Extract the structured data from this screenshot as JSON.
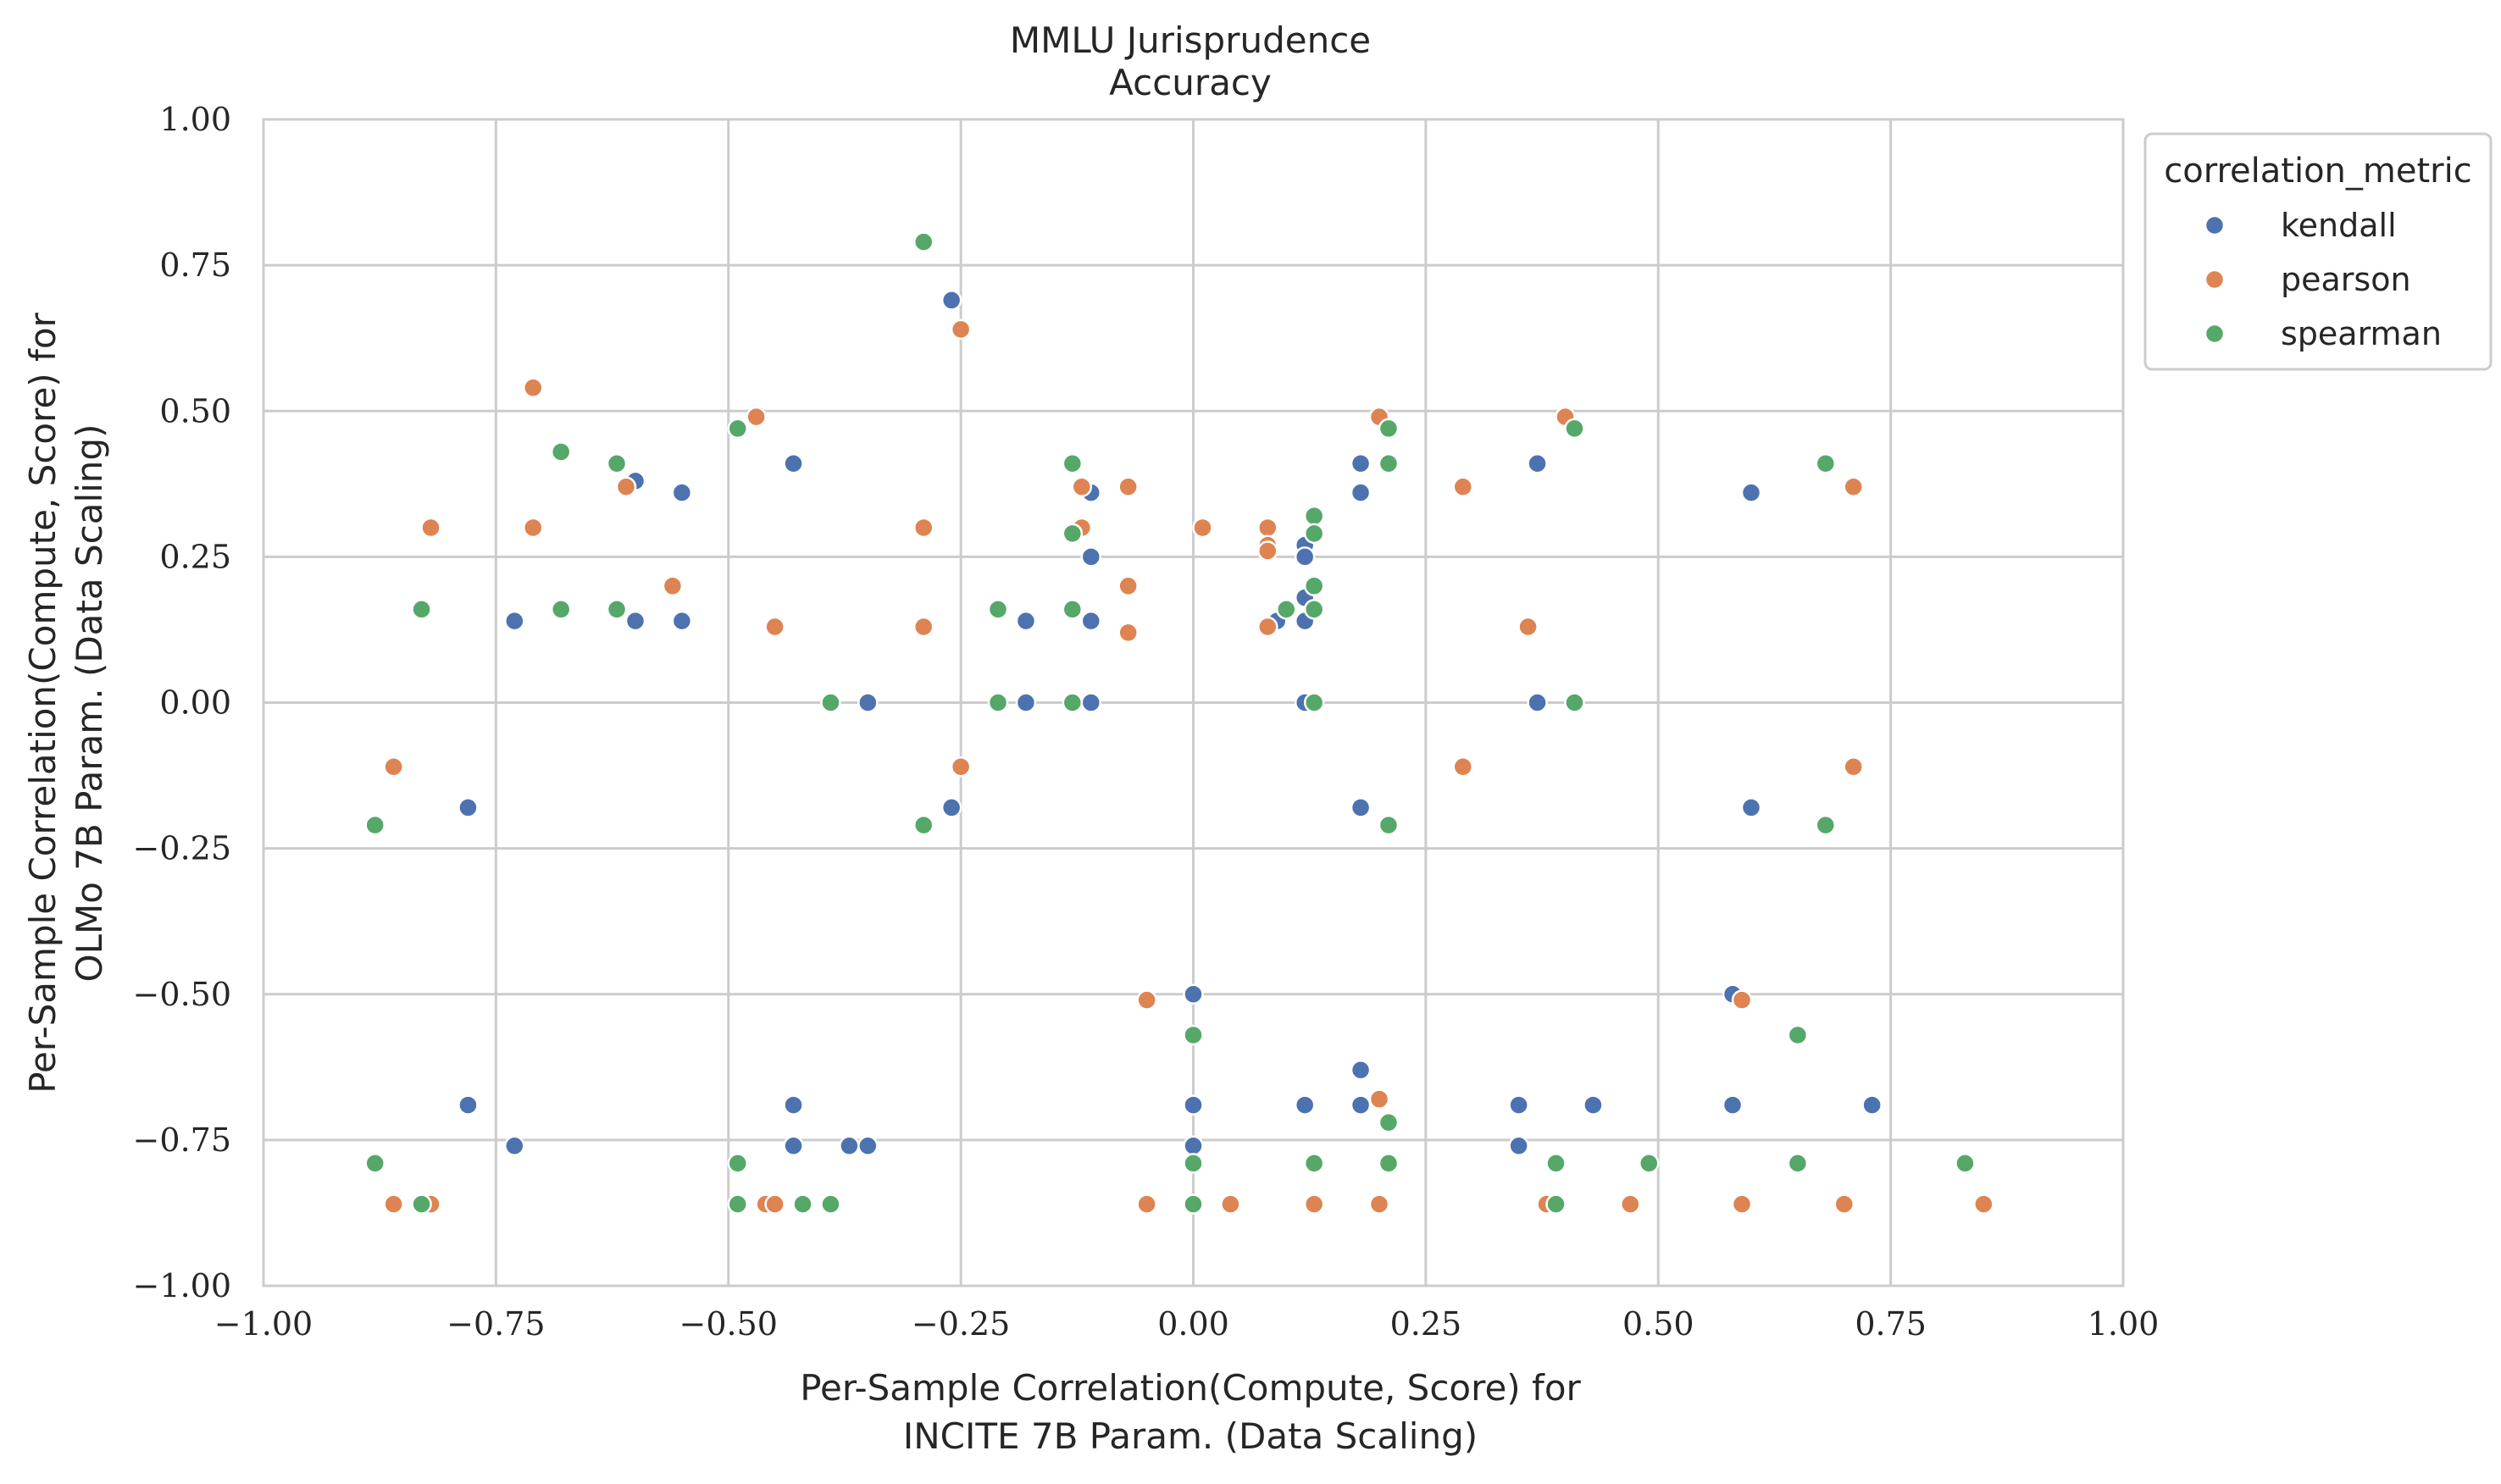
{
  "chart_data": {
    "type": "scatter",
    "title": "MMLU Jurisprudence",
    "subtitle": "Accuracy",
    "xlabel": [
      "Per-Sample Correlation(Compute, Score) for",
      "INCITE 7B Param. (Data Scaling)"
    ],
    "ylabel": [
      "Per-Sample Correlation(Compute, Score) for",
      "OLMo 7B Param. (Data Scaling)"
    ],
    "xlim": [
      -1.0,
      1.0
    ],
    "ylim": [
      -1.0,
      1.0
    ],
    "xticks": [
      "−1.00",
      "−0.75",
      "−0.50",
      "−0.25",
      "0.00",
      "0.25",
      "0.50",
      "0.75",
      "1.00"
    ],
    "yticks": [
      "−1.00",
      "−0.75",
      "−0.50",
      "−0.25",
      "0.00",
      "0.25",
      "0.50",
      "0.75",
      "1.00"
    ],
    "grid": true,
    "legend": {
      "title": "correlation_metric",
      "placement": "outside-top-right"
    },
    "series": [
      {
        "name": "kendall",
        "color": "#4c72b0",
        "points": [
          [
            -0.78,
            -0.18
          ],
          [
            -0.73,
            0.14
          ],
          [
            -0.6,
            0.38
          ],
          [
            -0.6,
            0.14
          ],
          [
            -0.55,
            0.36
          ],
          [
            -0.55,
            0.14
          ],
          [
            -0.43,
            0.41
          ],
          [
            -0.35,
            0.0
          ],
          [
            -0.26,
            0.69
          ],
          [
            -0.26,
            -0.18
          ],
          [
            -0.18,
            0.14
          ],
          [
            -0.18,
            0.0
          ],
          [
            -0.11,
            0.36
          ],
          [
            -0.11,
            0.25
          ],
          [
            -0.11,
            0.14
          ],
          [
            -0.11,
            0.0
          ],
          [
            0.09,
            0.14
          ],
          [
            0.12,
            0.27
          ],
          [
            0.12,
            0.25
          ],
          [
            0.12,
            0.18
          ],
          [
            0.12,
            0.14
          ],
          [
            0.12,
            0.0
          ],
          [
            0.18,
            0.41
          ],
          [
            0.18,
            0.36
          ],
          [
            0.18,
            -0.18
          ],
          [
            0.37,
            0.41
          ],
          [
            0.37,
            0.0
          ],
          [
            0.6,
            0.36
          ],
          [
            0.6,
            -0.18
          ],
          [
            -0.78,
            -0.69
          ],
          [
            -0.73,
            -0.76
          ],
          [
            -0.43,
            -0.69
          ],
          [
            -0.43,
            -0.76
          ],
          [
            -0.37,
            -0.76
          ],
          [
            -0.35,
            -0.76
          ],
          [
            0.0,
            -0.5
          ],
          [
            0.0,
            -0.69
          ],
          [
            0.0,
            -0.76
          ],
          [
            0.12,
            -0.69
          ],
          [
            0.18,
            -0.63
          ],
          [
            0.18,
            -0.69
          ],
          [
            0.35,
            -0.69
          ],
          [
            0.35,
            -0.76
          ],
          [
            0.43,
            -0.69
          ],
          [
            0.58,
            -0.5
          ],
          [
            0.58,
            -0.69
          ],
          [
            0.73,
            -0.69
          ]
        ]
      },
      {
        "name": "pearson",
        "color": "#dd8452",
        "points": [
          [
            -0.86,
            -0.11
          ],
          [
            -0.82,
            0.3
          ],
          [
            -0.71,
            0.54
          ],
          [
            -0.71,
            0.3
          ],
          [
            -0.61,
            0.37
          ],
          [
            -0.56,
            0.2
          ],
          [
            -0.47,
            0.49
          ],
          [
            -0.45,
            0.13
          ],
          [
            -0.29,
            0.3
          ],
          [
            -0.29,
            0.13
          ],
          [
            -0.25,
            0.64
          ],
          [
            -0.25,
            -0.11
          ],
          [
            -0.12,
            0.37
          ],
          [
            -0.12,
            0.3
          ],
          [
            -0.07,
            0.37
          ],
          [
            -0.07,
            0.2
          ],
          [
            -0.07,
            0.12
          ],
          [
            0.01,
            0.3
          ],
          [
            0.08,
            0.3
          ],
          [
            0.08,
            0.27
          ],
          [
            0.08,
            0.26
          ],
          [
            0.08,
            0.13
          ],
          [
            0.2,
            0.49
          ],
          [
            0.29,
            0.37
          ],
          [
            0.29,
            -0.11
          ],
          [
            0.36,
            0.13
          ],
          [
            0.4,
            0.49
          ],
          [
            0.71,
            0.37
          ],
          [
            0.71,
            -0.11
          ],
          [
            -0.86,
            -0.86
          ],
          [
            -0.82,
            -0.86
          ],
          [
            -0.49,
            -0.86
          ],
          [
            -0.46,
            -0.86
          ],
          [
            -0.45,
            -0.86
          ],
          [
            -0.05,
            -0.51
          ],
          [
            -0.05,
            -0.86
          ],
          [
            0.04,
            -0.86
          ],
          [
            0.13,
            -0.86
          ],
          [
            0.2,
            -0.68
          ],
          [
            0.2,
            -0.86
          ],
          [
            0.38,
            -0.86
          ],
          [
            0.47,
            -0.86
          ],
          [
            0.59,
            -0.51
          ],
          [
            0.59,
            -0.86
          ],
          [
            0.7,
            -0.86
          ],
          [
            0.85,
            -0.86
          ]
        ]
      },
      {
        "name": "spearman",
        "color": "#55a868",
        "points": [
          [
            -0.88,
            -0.21
          ],
          [
            -0.83,
            0.16
          ],
          [
            -0.68,
            0.43
          ],
          [
            -0.68,
            0.16
          ],
          [
            -0.62,
            0.41
          ],
          [
            -0.62,
            0.16
          ],
          [
            -0.49,
            0.47
          ],
          [
            -0.39,
            0.0
          ],
          [
            -0.29,
            0.79
          ],
          [
            -0.29,
            -0.21
          ],
          [
            -0.21,
            0.16
          ],
          [
            -0.21,
            0.0
          ],
          [
            -0.13,
            0.41
          ],
          [
            -0.13,
            0.29
          ],
          [
            -0.13,
            0.16
          ],
          [
            -0.13,
            0.0
          ],
          [
            0.1,
            0.16
          ],
          [
            0.13,
            0.32
          ],
          [
            0.13,
            0.29
          ],
          [
            0.13,
            0.2
          ],
          [
            0.13,
            0.16
          ],
          [
            0.13,
            0.0
          ],
          [
            0.21,
            0.47
          ],
          [
            0.21,
            0.41
          ],
          [
            0.21,
            -0.21
          ],
          [
            0.41,
            0.47
          ],
          [
            0.41,
            0.0
          ],
          [
            0.68,
            0.41
          ],
          [
            0.68,
            -0.21
          ],
          [
            -0.88,
            -0.79
          ],
          [
            -0.83,
            -0.86
          ],
          [
            -0.49,
            -0.79
          ],
          [
            -0.49,
            -0.86
          ],
          [
            -0.42,
            -0.86
          ],
          [
            -0.39,
            -0.86
          ],
          [
            0.0,
            -0.57
          ],
          [
            0.0,
            -0.79
          ],
          [
            0.0,
            -0.86
          ],
          [
            0.13,
            -0.79
          ],
          [
            0.21,
            -0.72
          ],
          [
            0.21,
            -0.79
          ],
          [
            0.39,
            -0.79
          ],
          [
            0.39,
            -0.86
          ],
          [
            0.49,
            -0.79
          ],
          [
            0.65,
            -0.57
          ],
          [
            0.65,
            -0.79
          ],
          [
            0.83,
            -0.79
          ]
        ]
      }
    ]
  }
}
